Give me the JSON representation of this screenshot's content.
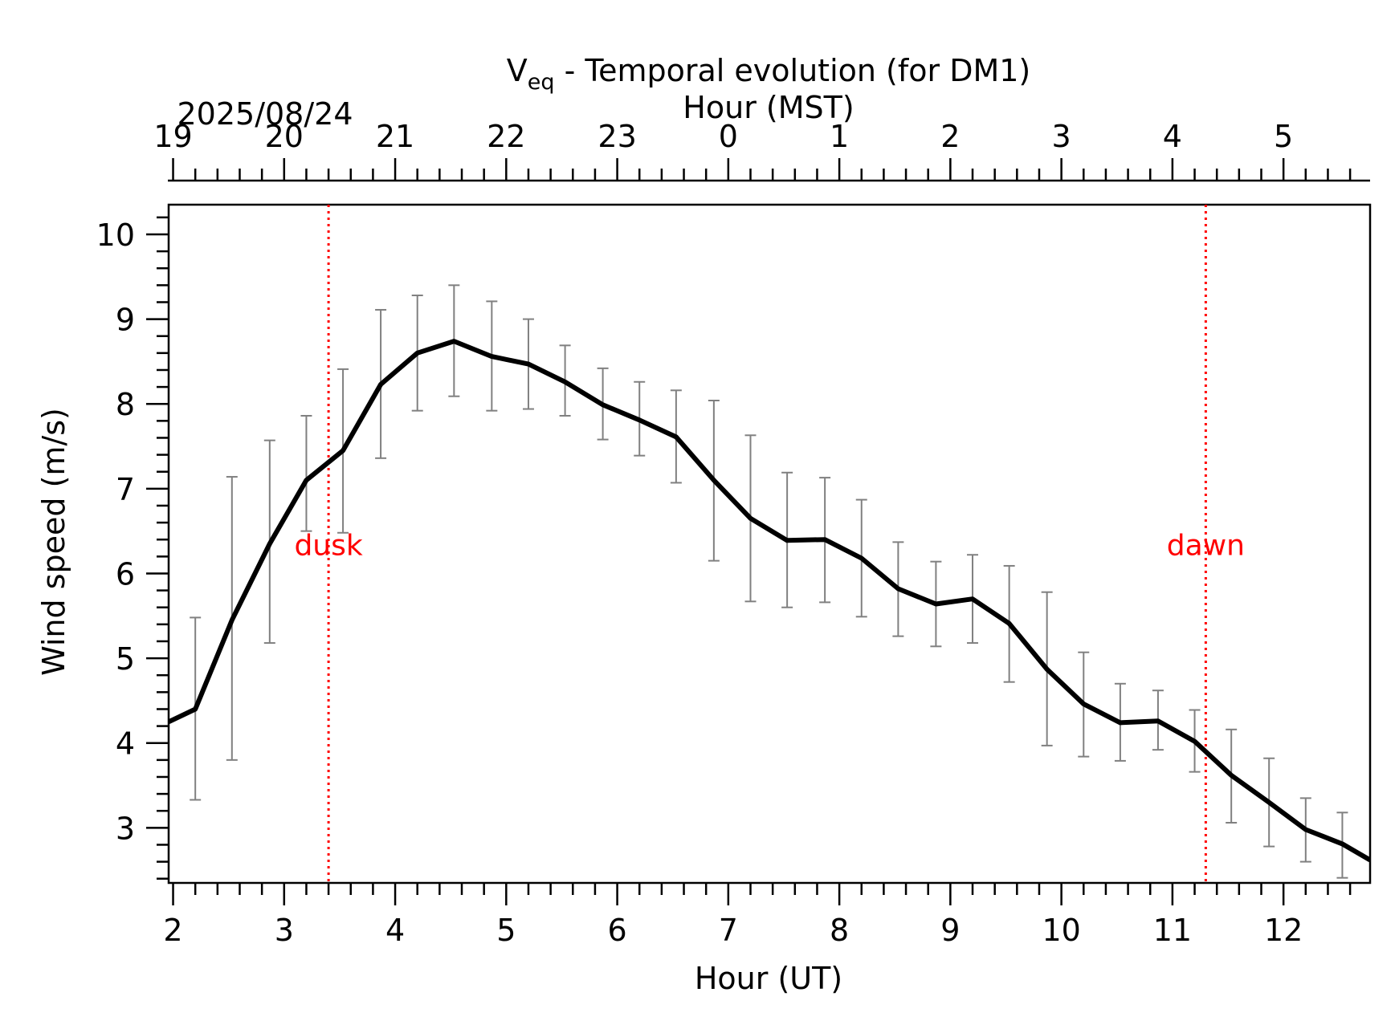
{
  "chart_data": {
    "type": "line",
    "title_main": "V",
    "title_sub": "eq",
    "title_rest": " - Temporal evolution (for DM1)",
    "top_axis_label": "Hour (MST)",
    "date_label": "2025/08/24",
    "xlabel": "Hour (UT)",
    "ylabel": "Wind speed (m/s)",
    "xlim": [
      1.96,
      12.78
    ],
    "ylim": [
      2.35,
      10.35
    ],
    "x_ticks": [
      2,
      3,
      4,
      5,
      6,
      7,
      8,
      9,
      10,
      11,
      12
    ],
    "x_tick_labels": [
      "2",
      "3",
      "4",
      "5",
      "6",
      "7",
      "8",
      "9",
      "10",
      "11",
      "12"
    ],
    "y_ticks": [
      3,
      4,
      5,
      6,
      7,
      8,
      9,
      10
    ],
    "y_tick_labels": [
      "3",
      "4",
      "5",
      "6",
      "7",
      "8",
      "9",
      "10"
    ],
    "top_tick_labels": [
      "19",
      "20",
      "21",
      "22",
      "23",
      "0",
      "1",
      "2",
      "3",
      "4",
      "5"
    ],
    "grid": false,
    "series": [
      {
        "color": "#000000",
        "x": [
          1.96,
          2.2,
          2.53,
          2.87,
          3.2,
          3.53,
          3.87,
          4.2,
          4.53,
          4.87,
          5.2,
          5.53,
          5.87,
          6.2,
          6.53,
          6.87,
          7.2,
          7.53,
          7.87,
          8.2,
          8.53,
          8.87,
          9.2,
          9.53,
          9.87,
          10.2,
          10.53,
          10.87,
          11.2,
          11.53,
          11.87,
          12.2,
          12.53,
          12.78
        ],
        "y": [
          4.25,
          4.4,
          5.45,
          6.35,
          7.1,
          7.45,
          8.23,
          8.6,
          8.74,
          8.56,
          8.47,
          8.26,
          7.99,
          7.81,
          7.61,
          7.1,
          6.65,
          6.39,
          6.4,
          6.18,
          5.82,
          5.64,
          5.7,
          5.41,
          4.87,
          4.46,
          4.24,
          4.26,
          4.02,
          3.62,
          3.3,
          2.98,
          2.81,
          2.62
        ],
        "yerr_low": [
          null,
          3.33,
          3.8,
          5.18,
          6.5,
          6.48,
          7.36,
          7.92,
          8.09,
          7.92,
          7.94,
          7.86,
          7.58,
          7.39,
          7.07,
          6.15,
          5.67,
          5.6,
          5.66,
          5.49,
          5.26,
          5.14,
          5.18,
          4.72,
          3.97,
          3.84,
          3.79,
          3.92,
          3.66,
          3.06,
          2.78,
          2.6,
          2.41,
          null
        ],
        "yerr_high": [
          null,
          5.48,
          7.14,
          7.57,
          7.86,
          8.41,
          9.11,
          9.28,
          9.4,
          9.21,
          9.0,
          8.69,
          8.42,
          8.26,
          8.16,
          8.04,
          7.63,
          7.19,
          7.13,
          6.87,
          6.37,
          6.14,
          6.22,
          6.09,
          5.78,
          5.07,
          4.7,
          4.62,
          4.39,
          4.16,
          3.82,
          3.35,
          3.18,
          null
        ],
        "errorbar_color": "#808080"
      }
    ],
    "vlines": [
      {
        "x": 3.4,
        "label": "dusk",
        "label_y": 6.35,
        "color": "#ff0000"
      },
      {
        "x": 11.3,
        "label": "dawn",
        "label_y": 6.35,
        "color": "#ff0000"
      }
    ]
  }
}
